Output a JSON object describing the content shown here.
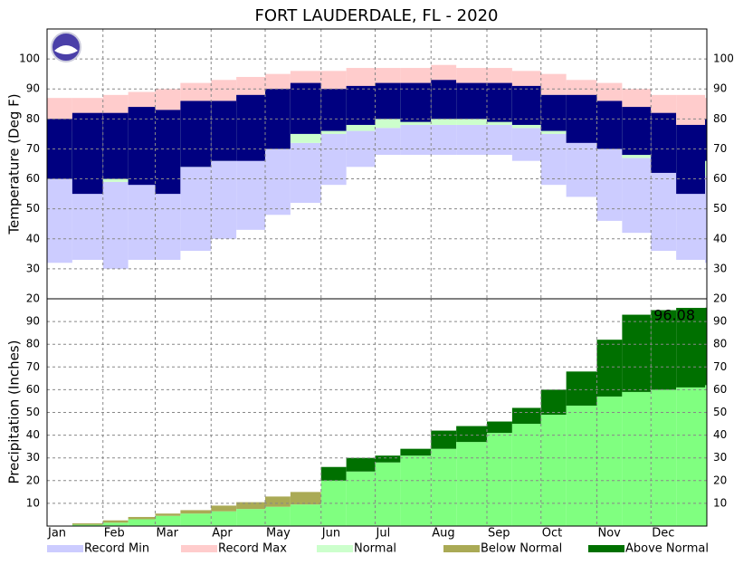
{
  "chart_data": [
    {
      "type": "band",
      "title": "FORT LAUDERDALE, FL - 2020",
      "y_label": "Temperature (Deg F)",
      "x": [
        1,
        15,
        32,
        46,
        61,
        75,
        92,
        106,
        122,
        136,
        153,
        167,
        183,
        197,
        214,
        228,
        245,
        259,
        275,
        289,
        306,
        320,
        336,
        350,
        366
      ],
      "xlim": [
        1,
        367
      ],
      "ylim": [
        20,
        110
      ],
      "yticks": [
        20,
        30,
        40,
        50,
        60,
        70,
        80,
        90,
        100
      ],
      "grid": true,
      "series": [
        {
          "name": "Record Min",
          "color": "#ccccff",
          "values": [
            32,
            33,
            30,
            33,
            33,
            36,
            40,
            43,
            48,
            52,
            58,
            64,
            68,
            68,
            68,
            68,
            68,
            66,
            58,
            54,
            46,
            42,
            36,
            33,
            32
          ]
        },
        {
          "name": "Record Max",
          "color": "#ffcccc",
          "values": [
            87,
            87,
            88,
            89,
            90,
            92,
            93,
            94,
            95,
            96,
            96,
            97,
            97,
            97,
            98,
            97,
            97,
            96,
            95,
            93,
            92,
            90,
            88,
            88,
            87
          ]
        },
        {
          "name": "Normal",
          "color": "#ccffcc",
          "low": [
            60,
            59,
            59,
            60,
            62,
            64,
            66,
            68,
            70,
            72,
            75,
            76,
            77,
            78,
            78,
            78,
            78,
            77,
            75,
            73,
            70,
            67,
            64,
            62,
            61
          ],
          "high": [
            76,
            76,
            77,
            78,
            79,
            81,
            82,
            84,
            85,
            87,
            88,
            89,
            90,
            90,
            91,
            91,
            90,
            89,
            88,
            86,
            84,
            81,
            79,
            77,
            76
          ]
        }
      ],
      "observed": {
        "color": "#000080",
        "low": [
          60,
          55,
          60,
          58,
          55,
          64,
          66,
          66,
          70,
          75,
          76,
          78,
          80,
          79,
          80,
          80,
          79,
          78,
          76,
          72,
          70,
          68,
          62,
          55,
          66
        ],
        "high": [
          80,
          82,
          82,
          84,
          83,
          86,
          86,
          88,
          90,
          92,
          90,
          91,
          92,
          92,
          93,
          92,
          92,
          91,
          88,
          88,
          86,
          84,
          82,
          78,
          80
        ]
      }
    },
    {
      "type": "cumulative",
      "y_label": "Precipitation (Inches)",
      "x": [
        1,
        15,
        32,
        46,
        61,
        75,
        92,
        106,
        122,
        136,
        153,
        167,
        183,
        197,
        214,
        228,
        245,
        259,
        275,
        289,
        306,
        320,
        336,
        350,
        366
      ],
      "xlim": [
        1,
        367
      ],
      "ylim": [
        0,
        100
      ],
      "yticks": [
        10,
        20,
        30,
        40,
        50,
        60,
        70,
        80,
        90
      ],
      "grid": true,
      "xticks": [
        {
          "value": 1,
          "label": "Jan"
        },
        {
          "value": 32,
          "label": "Feb"
        },
        {
          "value": 61,
          "label": "Mar"
        },
        {
          "value": 92,
          "label": "Apr"
        },
        {
          "value": 122,
          "label": "May"
        },
        {
          "value": 153,
          "label": "Jun"
        },
        {
          "value": 183,
          "label": "Jul"
        },
        {
          "value": 214,
          "label": "Aug"
        },
        {
          "value": 245,
          "label": "Sep"
        },
        {
          "value": 275,
          "label": "Oct"
        },
        {
          "value": 306,
          "label": "Nov"
        },
        {
          "value": 336,
          "label": "Dec"
        }
      ],
      "normal": {
        "color": "#80ff80",
        "values": [
          0,
          1.2,
          2.5,
          4,
          5.5,
          7,
          9,
          10.5,
          13,
          15,
          20,
          24,
          28,
          31,
          34,
          37,
          41,
          45,
          49,
          53,
          57,
          59,
          60,
          61,
          62
        ]
      },
      "observed": {
        "values": [
          0,
          0.6,
          1.5,
          3,
          4.5,
          5.5,
          6.5,
          7.5,
          8.5,
          9.5,
          26,
          30,
          31,
          34,
          42,
          44,
          46,
          52,
          60,
          68,
          82,
          93,
          95,
          96,
          96.08
        ]
      },
      "legend": [
        {
          "name": "Below Normal",
          "color": "#aaaa55"
        },
        {
          "name": "Above Normal",
          "color": "#007000"
        }
      ],
      "annotation": "96.08"
    }
  ]
}
